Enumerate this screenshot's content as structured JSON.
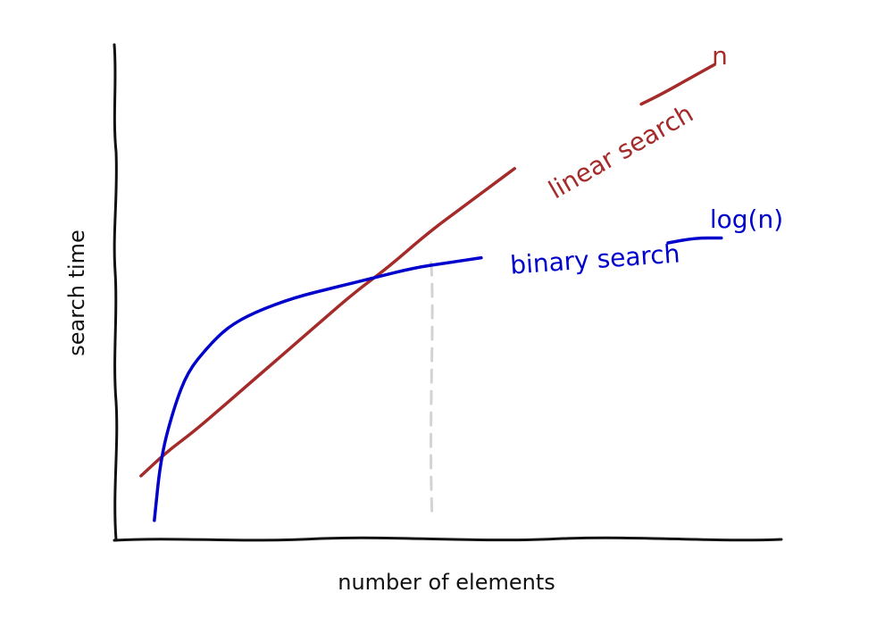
{
  "chart_data": {
    "type": "line",
    "title": "",
    "xlabel": "number of elements",
    "ylabel": "search time",
    "grid": false,
    "legend": "none",
    "series": [
      {
        "name": "linear search",
        "end_label": "n",
        "color": "#a52a2a",
        "points": [
          [
            0.04,
            0.13
          ],
          [
            0.08,
            0.18
          ],
          [
            0.12,
            0.22
          ],
          [
            0.18,
            0.29
          ],
          [
            0.24,
            0.36
          ],
          [
            0.3,
            0.43
          ],
          [
            0.36,
            0.5
          ],
          [
            0.41,
            0.55
          ],
          [
            0.47,
            0.62
          ],
          [
            0.52,
            0.67
          ],
          [
            0.57,
            0.72
          ],
          [
            0.6,
            0.75
          ]
        ],
        "trail_points": [
          [
            0.79,
            0.88
          ],
          [
            0.82,
            0.9
          ],
          [
            0.86,
            0.93
          ],
          [
            0.9,
            0.96
          ]
        ]
      },
      {
        "name": "binary search",
        "end_label": "log(n)",
        "color": "#0000cd",
        "points": [
          [
            0.06,
            0.04
          ],
          [
            0.07,
            0.17
          ],
          [
            0.09,
            0.27
          ],
          [
            0.11,
            0.34
          ],
          [
            0.14,
            0.39
          ],
          [
            0.17,
            0.43
          ],
          [
            0.21,
            0.46
          ],
          [
            0.27,
            0.49
          ],
          [
            0.33,
            0.51
          ],
          [
            0.39,
            0.53
          ],
          [
            0.45,
            0.55
          ],
          [
            0.5,
            0.56
          ],
          [
            0.55,
            0.57
          ]
        ],
        "trail_points": [
          [
            0.83,
            0.6
          ],
          [
            0.87,
            0.61
          ],
          [
            0.91,
            0.61
          ]
        ]
      }
    ],
    "annotations": [
      {
        "type": "crossover-guide",
        "x": 0.475,
        "y_from": 0.56,
        "y_to": 0.05,
        "color": "#d3d3d3"
      }
    ]
  },
  "axes": {
    "color": "#111111"
  }
}
